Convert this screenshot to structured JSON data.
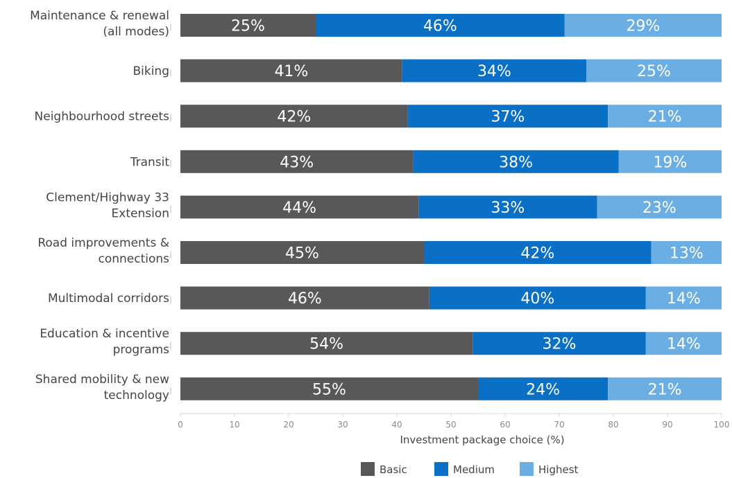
{
  "chart_data": {
    "type": "bar",
    "orientation": "horizontal",
    "stacked": true,
    "categories": [
      [
        "Maintenance & renewal",
        "(all modes)"
      ],
      [
        "Biking"
      ],
      [
        "Neighbourhood streets"
      ],
      [
        "Transit"
      ],
      [
        "Clement/Highway 33",
        "Extension"
      ],
      [
        "Road improvements &",
        "connections"
      ],
      [
        "Multimodal corridors"
      ],
      [
        "Education & incentive",
        "programs"
      ],
      [
        "Shared mobility & new",
        "technology"
      ]
    ],
    "series": [
      {
        "name": "Basic",
        "color": "#58585a",
        "values": [
          25,
          41,
          42,
          43,
          44,
          45,
          46,
          54,
          55
        ]
      },
      {
        "name": "Medium",
        "color": "#0a70c6",
        "values": [
          46,
          34,
          37,
          38,
          33,
          42,
          40,
          32,
          24
        ]
      },
      {
        "name": "Highest",
        "color": "#6aaee3",
        "values": [
          29,
          25,
          21,
          19,
          23,
          13,
          14,
          14,
          21
        ]
      }
    ],
    "value_suffix": "%",
    "xlabel": "Investment package choice (%)",
    "xlim": [
      0,
      100
    ],
    "xticks": [
      0,
      10,
      20,
      30,
      40,
      50,
      60,
      70,
      80,
      90,
      100
    ],
    "grid": false,
    "legend_position": "bottom"
  }
}
